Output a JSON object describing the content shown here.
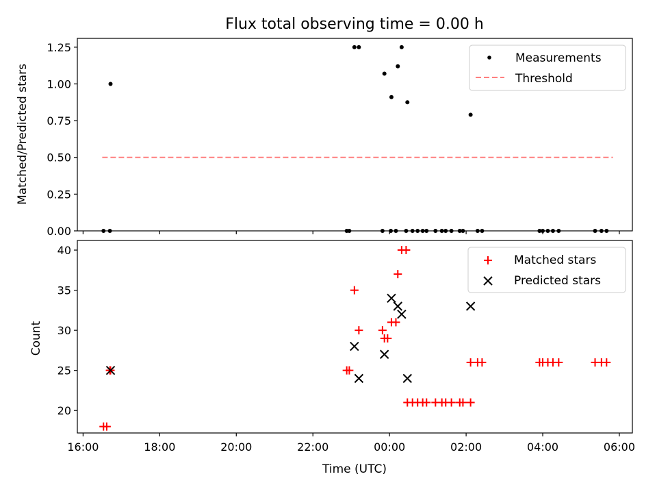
{
  "chart_data": [
    {
      "type": "scatter",
      "title": "Flux total observing time = 0.00 h",
      "xlabel": "",
      "ylabel": "Matched/Predicted stars",
      "xlim": [
        "16:00",
        "06:00"
      ],
      "ylim": [
        0,
        1.3
      ],
      "yticks": [
        "0.00",
        "0.25",
        "0.50",
        "0.75",
        "1.00",
        "1.25"
      ],
      "grid": false,
      "legend_position": "top-right",
      "series": [
        {
          "name": "Measurements",
          "kind": "points",
          "color": "#000000",
          "points": [
            [
              "16:32",
              0
            ],
            [
              "16:42",
              0
            ],
            [
              "16:43",
              1.0
            ],
            [
              "22:53",
              0
            ],
            [
              "22:57",
              0
            ],
            [
              "23:05",
              1.25
            ],
            [
              "23:12",
              1.25
            ],
            [
              "23:49",
              0
            ],
            [
              "23:52",
              1.07
            ],
            [
              "00:02",
              0
            ],
            [
              "00:03",
              0.91
            ],
            [
              "00:10",
              0
            ],
            [
              "00:13",
              1.12
            ],
            [
              "00:19",
              1.25
            ],
            [
              "00:26",
              0
            ],
            [
              "00:28",
              0.875
            ],
            [
              "00:36",
              0
            ],
            [
              "00:44",
              0
            ],
            [
              "00:52",
              0
            ],
            [
              "00:58",
              0
            ],
            [
              "01:12",
              0
            ],
            [
              "01:22",
              0
            ],
            [
              "01:28",
              0
            ],
            [
              "01:37",
              0
            ],
            [
              "01:50",
              0
            ],
            [
              "01:55",
              0
            ],
            [
              "02:07",
              0.79
            ],
            [
              "02:18",
              0
            ],
            [
              "02:25",
              0
            ],
            [
              "03:55",
              0
            ],
            [
              "04:00",
              0
            ],
            [
              "04:08",
              0
            ],
            [
              "04:16",
              0
            ],
            [
              "04:25",
              0
            ],
            [
              "05:22",
              0
            ],
            [
              "05:32",
              0
            ],
            [
              "05:40",
              0
            ]
          ]
        },
        {
          "name": "Threshold",
          "kind": "dashed-line",
          "color": "#ff7f7f",
          "points": [
            [
              "16:30",
              0.5
            ],
            [
              "05:50",
              0.5
            ]
          ]
        }
      ]
    },
    {
      "type": "scatter",
      "title": "",
      "xlabel": "Time (UTC)",
      "ylabel": "Count",
      "xlim": [
        "16:00",
        "06:00"
      ],
      "xticks": [
        "16:00",
        "18:00",
        "20:00",
        "22:00",
        "00:00",
        "02:00",
        "04:00",
        "06:00"
      ],
      "ylim": [
        17.2,
        41.2
      ],
      "yticks": [
        "20",
        "25",
        "30",
        "35",
        "40"
      ],
      "grid": false,
      "legend_position": "top-right",
      "series": [
        {
          "name": "Matched stars",
          "kind": "plus-markers",
          "color": "#ff0000",
          "points": [
            [
              "16:32",
              18
            ],
            [
              "16:37",
              18
            ],
            [
              "16:42",
              25
            ],
            [
              "16:43",
              25
            ],
            [
              "22:53",
              25
            ],
            [
              "22:57",
              25
            ],
            [
              "23:05",
              35
            ],
            [
              "23:12",
              30
            ],
            [
              "23:49",
              30
            ],
            [
              "23:52",
              29
            ],
            [
              "23:57",
              29
            ],
            [
              "00:03",
              31
            ],
            [
              "00:10",
              31
            ],
            [
              "00:13",
              37
            ],
            [
              "00:19",
              40
            ],
            [
              "00:26",
              40
            ],
            [
              "00:28",
              21
            ],
            [
              "00:36",
              21
            ],
            [
              "00:44",
              21
            ],
            [
              "00:52",
              21
            ],
            [
              "00:58",
              21
            ],
            [
              "01:12",
              21
            ],
            [
              "01:22",
              21
            ],
            [
              "01:28",
              21
            ],
            [
              "01:37",
              21
            ],
            [
              "01:50",
              21
            ],
            [
              "01:55",
              21
            ],
            [
              "02:07",
              21
            ],
            [
              "02:07",
              26
            ],
            [
              "02:18",
              26
            ],
            [
              "02:25",
              26
            ],
            [
              "03:55",
              26
            ],
            [
              "04:00",
              26
            ],
            [
              "04:08",
              26
            ],
            [
              "04:16",
              26
            ],
            [
              "04:25",
              26
            ],
            [
              "05:22",
              26
            ],
            [
              "05:32",
              26
            ],
            [
              "05:40",
              26
            ]
          ]
        },
        {
          "name": "Predicted stars",
          "kind": "x-markers",
          "color": "#000000",
          "points": [
            [
              "16:43",
              25
            ],
            [
              "23:05",
              28
            ],
            [
              "23:12",
              24
            ],
            [
              "23:52",
              27
            ],
            [
              "00:03",
              34
            ],
            [
              "00:13",
              33
            ],
            [
              "00:19",
              32
            ],
            [
              "00:28",
              24
            ],
            [
              "02:07",
              33
            ]
          ]
        }
      ]
    }
  ]
}
